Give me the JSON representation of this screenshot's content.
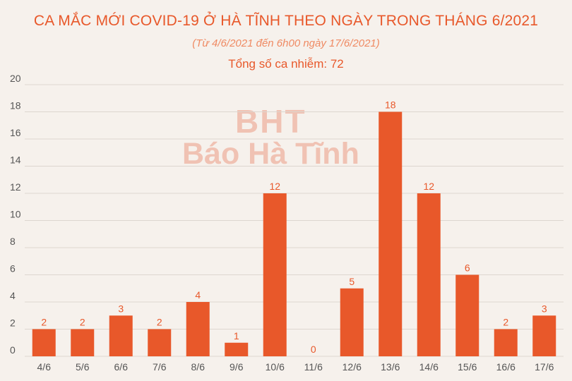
{
  "chart_data": {
    "type": "bar",
    "title": "CA MẮC MỚI COVID-19 Ở HÀ TĨNH THEO NGÀY TRONG THÁNG 6/2021",
    "subtitle": "(Từ 4/6/2021 đến 6h00 ngày 17/6/2021)",
    "total_label": "Tổng số ca nhiễm: 72",
    "categories": [
      "4/6",
      "5/6",
      "6/6",
      "7/6",
      "8/6",
      "9/6",
      "10/6",
      "11/6",
      "12/6",
      "13/6",
      "14/6",
      "15/6",
      "16/6",
      "17/6"
    ],
    "values": [
      2,
      2,
      3,
      2,
      4,
      1,
      12,
      0,
      5,
      18,
      12,
      6,
      2,
      3
    ],
    "ylim": [
      0,
      20
    ],
    "yticks": [
      0,
      2,
      4,
      6,
      8,
      10,
      12,
      14,
      16,
      18,
      20
    ],
    "grid": true,
    "bar_color": "#e8582a"
  },
  "watermark": {
    "logo": "BHT",
    "name": "Báo Hà Tĩnh"
  }
}
